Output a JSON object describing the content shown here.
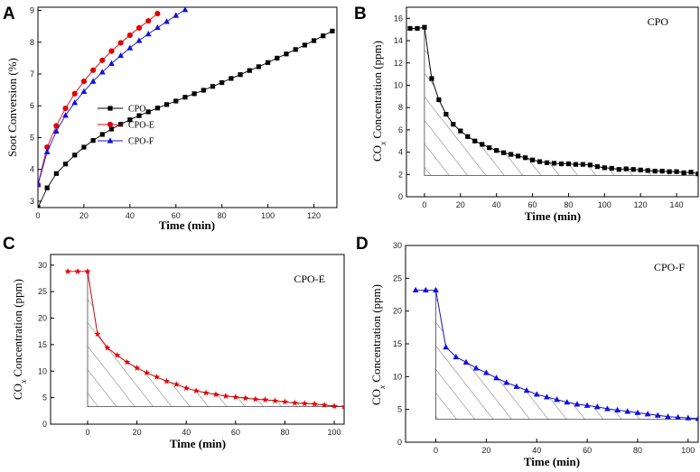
{
  "chart_data": [
    {
      "panel": "A",
      "type": "line",
      "title": "",
      "xlabel": "Time (min)",
      "ylabel": "Soot Conversion (%)",
      "xlim": [
        0,
        130
      ],
      "ylim": [
        2.8,
        9.1
      ],
      "xticks": [
        0,
        20,
        40,
        60,
        80,
        100,
        120
      ],
      "yticks": [
        3,
        4,
        5,
        6,
        7,
        8,
        9
      ],
      "legend": {
        "position": "middle-left",
        "entries": [
          "CPO",
          "CPO-E",
          "CPO-F"
        ]
      },
      "series": [
        {
          "name": "CPO",
          "color": "#000000",
          "marker": "square",
          "x": [
            0,
            4,
            8,
            12,
            16,
            20,
            24,
            28,
            32,
            36,
            40,
            44,
            48,
            52,
            56,
            60,
            64,
            68,
            72,
            76,
            80,
            84,
            88,
            92,
            96,
            100,
            104,
            108,
            112,
            116,
            120,
            124,
            128
          ],
          "y": [
            2.8,
            3.42,
            3.87,
            4.17,
            4.45,
            4.7,
            4.91,
            5.1,
            5.27,
            5.42,
            5.56,
            5.69,
            5.81,
            5.93,
            6.04,
            6.15,
            6.27,
            6.38,
            6.49,
            6.61,
            6.73,
            6.86,
            6.98,
            7.11,
            7.23,
            7.36,
            7.5,
            7.63,
            7.77,
            7.91,
            8.05,
            8.2,
            8.35
          ]
        },
        {
          "name": "CPO-E",
          "color": "#e00000",
          "marker": "circle",
          "x": [
            0,
            4,
            8,
            12,
            16,
            20,
            24,
            28,
            32,
            36,
            40,
            44,
            48,
            52
          ],
          "y": [
            3.52,
            4.7,
            5.37,
            5.92,
            6.38,
            6.77,
            7.12,
            7.43,
            7.72,
            7.98,
            8.22,
            8.45,
            8.67,
            8.9
          ]
        },
        {
          "name": "CPO-F",
          "color": "#1010e0",
          "marker": "triangle",
          "x": [
            0,
            4,
            8,
            12,
            16,
            20,
            24,
            28,
            32,
            36,
            40,
            44,
            48,
            52,
            56,
            60,
            64
          ],
          "y": [
            3.52,
            4.55,
            5.2,
            5.7,
            6.1,
            6.45,
            6.77,
            7.06,
            7.33,
            7.58,
            7.82,
            8.05,
            8.26,
            8.46,
            8.65,
            8.84,
            9.02
          ]
        }
      ]
    },
    {
      "panel": "B",
      "type": "line",
      "title": "CPO",
      "xlabel": "Time (min)",
      "ylabel": "CO_x Concentration (ppm)",
      "xlim": [
        -10,
        152
      ],
      "ylim": [
        0,
        17
      ],
      "xticks": [
        0,
        20,
        40,
        60,
        80,
        100,
        120,
        140
      ],
      "yticks": [
        0,
        2,
        4,
        6,
        8,
        10,
        12,
        14,
        16
      ],
      "series": [
        {
          "name": "CPO",
          "color": "#000000",
          "marker": "square",
          "x": [
            -8,
            -4,
            0,
            4,
            8,
            12,
            16,
            20,
            24,
            28,
            32,
            36,
            40,
            44,
            48,
            52,
            56,
            60,
            64,
            68,
            72,
            76,
            80,
            84,
            88,
            92,
            96,
            100,
            104,
            108,
            112,
            116,
            120,
            124,
            128,
            132,
            136,
            140,
            144,
            148,
            152
          ],
          "y": [
            15.1,
            15.1,
            15.2,
            10.6,
            8.7,
            7.4,
            6.5,
            5.9,
            5.4,
            5.0,
            4.7,
            4.4,
            4.15,
            3.95,
            3.8,
            3.65,
            3.5,
            3.3,
            3.15,
            3.05,
            3.0,
            2.95,
            2.95,
            2.9,
            2.9,
            2.85,
            2.7,
            2.6,
            2.55,
            2.45,
            2.5,
            2.45,
            2.4,
            2.35,
            2.3,
            2.3,
            2.25,
            2.25,
            2.15,
            2.2,
            2.05
          ]
        }
      ],
      "baseline": 1.9
    },
    {
      "panel": "C",
      "type": "line",
      "title": "CPO-E",
      "xlabel": "Time (min)",
      "ylabel": "CO_x Concentration (ppm)",
      "xlim": [
        -15,
        104
      ],
      "ylim": [
        0,
        32
      ],
      "xticks": [
        0,
        20,
        40,
        60,
        80,
        100
      ],
      "yticks": [
        0,
        5,
        10,
        15,
        20,
        25,
        30
      ],
      "series": [
        {
          "name": "CPO-E",
          "color": "#e00000",
          "marker": "star",
          "x": [
            -8,
            -4,
            0,
            4,
            8,
            12,
            16,
            20,
            24,
            28,
            32,
            36,
            40,
            44,
            48,
            52,
            56,
            60,
            64,
            68,
            72,
            76,
            80,
            84,
            88,
            92,
            96,
            100,
            104
          ],
          "y": [
            28.8,
            28.8,
            28.8,
            17.0,
            14.4,
            13.0,
            11.7,
            10.6,
            9.7,
            8.9,
            8.1,
            7.5,
            6.8,
            6.3,
            5.9,
            5.6,
            5.3,
            5.1,
            4.9,
            4.7,
            4.6,
            4.4,
            4.2,
            4.0,
            3.9,
            3.8,
            3.6,
            3.4,
            3.3
          ]
        }
      ],
      "baseline": 3.3
    },
    {
      "panel": "D",
      "type": "line",
      "title": "CPO-F",
      "xlabel": "Time (min)",
      "ylabel": "CO_x Concentration (ppm)",
      "xlim": [
        -12,
        104
      ],
      "ylim": [
        0,
        30
      ],
      "xticks": [
        0,
        20,
        40,
        60,
        80,
        100
      ],
      "yticks": [
        0,
        5,
        10,
        15,
        20,
        25,
        30
      ],
      "series": [
        {
          "name": "CPO-F",
          "color": "#1010e0",
          "marker": "triangle",
          "x": [
            -8,
            -4,
            0,
            4,
            8,
            12,
            16,
            20,
            24,
            28,
            32,
            36,
            40,
            44,
            48,
            52,
            56,
            60,
            64,
            68,
            72,
            76,
            80,
            84,
            88,
            92,
            96,
            100,
            104
          ],
          "y": [
            23.2,
            23.2,
            23.2,
            14.5,
            13.0,
            12.2,
            11.3,
            10.6,
            9.8,
            9.1,
            8.5,
            7.9,
            7.3,
            6.9,
            6.5,
            6.1,
            5.8,
            5.6,
            5.4,
            5.1,
            4.9,
            4.7,
            4.5,
            4.3,
            4.1,
            3.9,
            3.8,
            3.7,
            3.6
          ]
        }
      ],
      "baseline": 3.5
    }
  ]
}
